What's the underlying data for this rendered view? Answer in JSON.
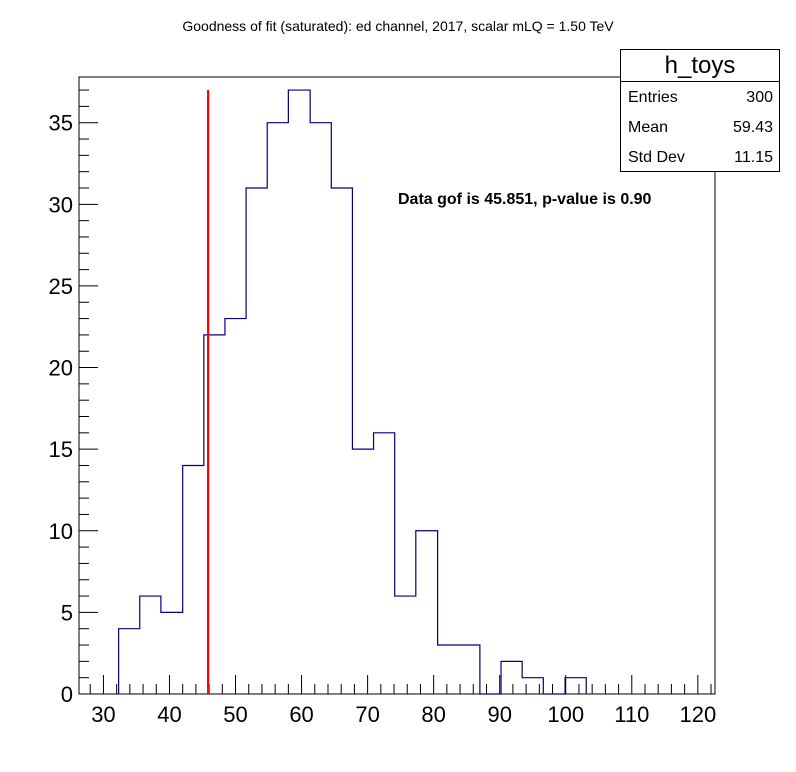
{
  "title": "Goodness of fit (saturated): ed channel, 2017, scalar mLQ = 1.50 TeV",
  "stats": {
    "name": "h_toys",
    "rows": [
      {
        "key": "Entries",
        "value": "300"
      },
      {
        "key": "Mean",
        "value": "59.43"
      },
      {
        "key": "Std Dev",
        "value": "11.15"
      }
    ]
  },
  "annotation": "Data gof is 45.851, p-value is 0.90",
  "colors": {
    "histogram": "#000080",
    "data_line": "#ff0000",
    "axis": "#000000"
  },
  "chart_data": {
    "type": "histogram",
    "xlim": [
      26.3,
      122.6
    ],
    "ylim": [
      0,
      37.8
    ],
    "xticks": [
      30,
      40,
      50,
      60,
      70,
      80,
      90,
      100,
      110,
      120
    ],
    "yticks": [
      0,
      5,
      10,
      15,
      20,
      25,
      30,
      35
    ],
    "bin_edges": [
      32.3,
      35.5,
      38.7,
      42.0,
      45.2,
      48.4,
      51.6,
      54.8,
      58.0,
      61.3,
      64.5,
      67.7,
      70.9,
      74.1,
      77.3,
      80.6,
      83.8,
      87.0,
      90.2,
      93.4,
      96.6,
      99.9,
      103.1
    ],
    "counts": [
      4,
      6,
      5,
      14,
      22,
      23,
      31,
      35,
      37,
      35,
      31,
      15,
      16,
      6,
      10,
      3,
      3,
      0,
      2,
      1,
      0,
      1
    ],
    "data_gof": 45.851,
    "data_line_top": 37
  }
}
